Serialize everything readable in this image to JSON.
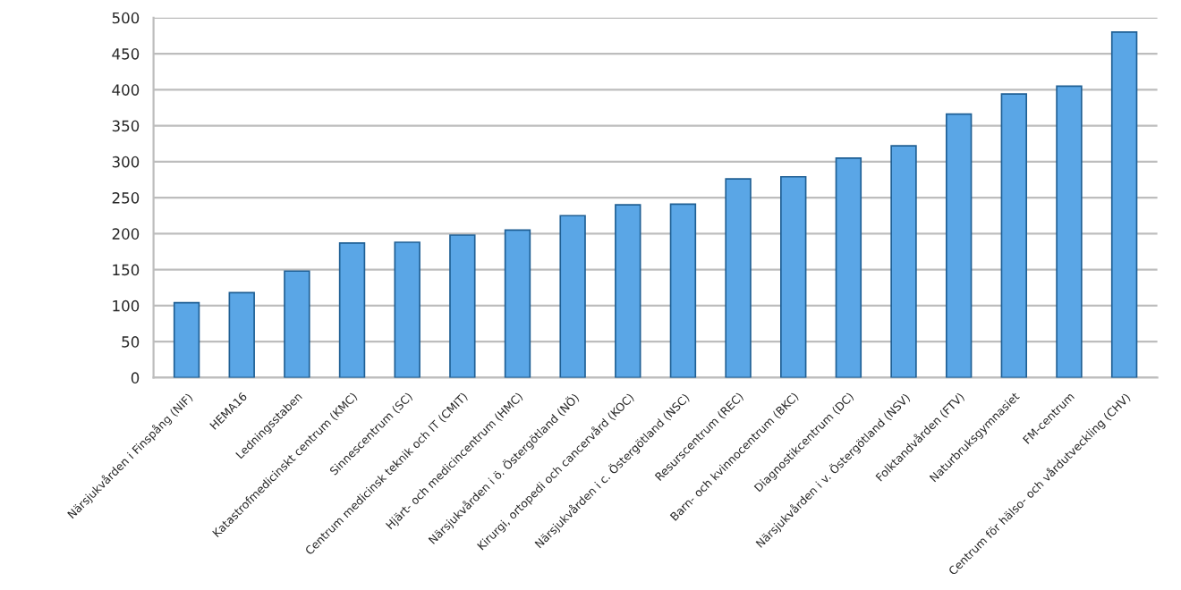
{
  "chart_data": {
    "type": "bar",
    "categories": [
      "Närsjukvården i Finspång (NIF)",
      "HEMA16",
      "Ledningsstaben",
      "Katastrofmedicinskt centrum (KMC)",
      "Sinnescentrum (SC)",
      "Centrum medicinsk teknik och IT (CMIT)",
      "Hjärt- och medicincentrum (HMC)",
      "Närsjukvården i ö. Östergötland (NÖ)",
      "Kirurgi, ortopedi och cancervård (KOC)",
      "Närsjukvården i c. Östergötland (NSC)",
      "Resurscentrum (REC)",
      "Barn- och kvinnocentrum (BKC)",
      "Diagnostikcentrum (DC)",
      "Närsjukvården i v. Östergötland (NSV)",
      "Folktandvården (FTV)",
      "Naturbruksgymnasiet",
      "FM-centrum",
      "Centrum för hälso- och vårdutveckling (CHV)"
    ],
    "values": [
      104,
      118,
      148,
      187,
      188,
      198,
      205,
      225,
      240,
      241,
      276,
      279,
      305,
      322,
      366,
      394,
      405,
      480
    ],
    "color": "#5aa6e6",
    "ylim": [
      0,
      500
    ],
    "yticks": [
      0,
      50,
      100,
      150,
      200,
      250,
      300,
      350,
      400,
      450,
      500
    ],
    "grid": "y"
  }
}
